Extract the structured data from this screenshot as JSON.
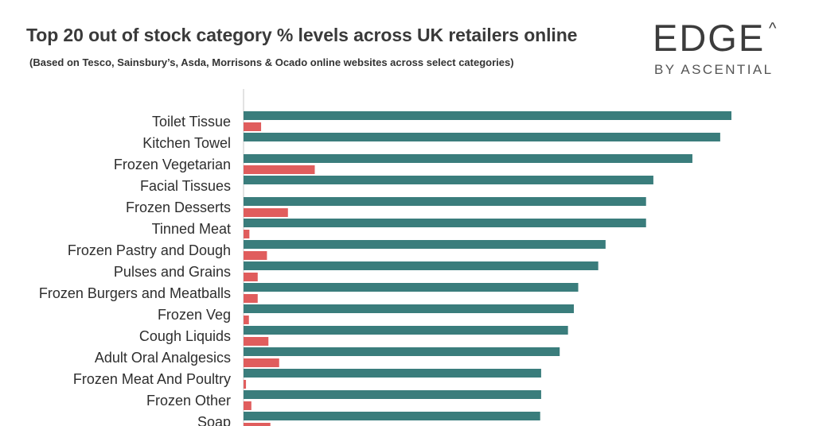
{
  "title": "Top 20 out of stock category % levels across UK retailers online",
  "subtitle": "(Based on Tesco, Sainsbury’s, Asda, Morrisons & Ocado online websites across select categories)",
  "logo": {
    "main": "EDGE",
    "caret": "^",
    "sub": "BY ASCENTIAL"
  },
  "colors": {
    "series_1": "#3a7d7c",
    "series_2": "#e05d5d",
    "axis": "#d0d0d0"
  },
  "chart_data": {
    "type": "bar",
    "orientation": "horizontal",
    "title": "Top 20 out of stock category % levels across UK retailers online",
    "xlabel": "",
    "ylabel": "",
    "xlim": [
      0,
      100
    ],
    "grid": false,
    "legend": "none",
    "categories": [
      "Toilet Tissue",
      "Kitchen Towel",
      "Frozen Vegetarian",
      "Facial Tissues",
      "Frozen Desserts",
      "Tinned Meat",
      "Frozen Pastry and Dough",
      "Pulses and Grains",
      "Frozen Burgers and Meatballs",
      "Frozen Veg",
      "Cough Liquids",
      "Adult Oral Analgesics",
      "Frozen Meat And Poultry",
      "Frozen Other",
      "Soap"
    ],
    "series": [
      {
        "values": [
          100,
          97.7,
          92,
          84,
          82.5,
          82.5,
          74.2,
          72.7,
          68.6,
          67.7,
          66.5,
          64.8,
          61,
          61,
          60.8
        ]
      },
      {
        "values": [
          3.6,
          0,
          14.6,
          0,
          9.1,
          1.2,
          4.8,
          2.9,
          2.9,
          1.1,
          5.1,
          7.3,
          0.5,
          1.6,
          5.5
        ]
      }
    ]
  }
}
